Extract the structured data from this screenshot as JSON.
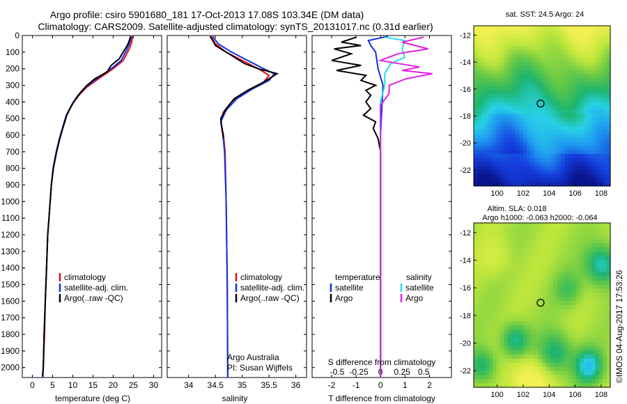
{
  "header": {
    "title_line1": "Argo profile: csiro 5901680_181 17-Oct-2013 17.08S 103.34E (DM data)",
    "title_line2": "Climatology: CARS2009. Satellite-adjusted climatology: synTS_20131017.nc (0.31d earlier)"
  },
  "colors": {
    "climatology": "#e01010",
    "satellite": "#1030e0",
    "argo": "#000000",
    "temp_sat": "#1030e0",
    "sal_sat": "#20e0e8",
    "sal_argo": "#e020e0"
  },
  "depth_axis": {
    "ticks": [
      0,
      100,
      200,
      300,
      400,
      500,
      600,
      700,
      800,
      900,
      1000,
      1100,
      1200,
      1300,
      1400,
      1500,
      1600,
      1700,
      1800,
      1900,
      2000
    ],
    "range": [
      0,
      2060
    ]
  },
  "chart_data": [
    {
      "type": "line",
      "panel": "temperature",
      "xlabel": "temperature (deg C)",
      "xlim": [
        -2.5,
        32
      ],
      "x_ticks": [
        0,
        5,
        10,
        15,
        20,
        25,
        30
      ],
      "legend": [
        "climatology",
        "satellite-adj. clim.",
        "Argo(..raw -QC)"
      ],
      "series": [
        {
          "name": "climatology",
          "points": [
            [
              24.8,
              5
            ],
            [
              24.6,
              40
            ],
            [
              24.0,
              80
            ],
            [
              22.5,
              150
            ],
            [
              20.0,
              200
            ],
            [
              17.0,
              250
            ],
            [
              13.5,
              310
            ],
            [
              11.5,
              360
            ],
            [
              10.0,
              410
            ],
            [
              8.5,
              480
            ],
            [
              7.5,
              560
            ],
            [
              6.8,
              620
            ],
            [
              6.0,
              700
            ],
            [
              5.2,
              800
            ],
            [
              4.7,
              900
            ],
            [
              4.4,
              1000
            ],
            [
              4.1,
              1100
            ],
            [
              3.8,
              1200
            ],
            [
              3.5,
              1400
            ],
            [
              3.2,
              1600
            ],
            [
              3.0,
              1800
            ],
            [
              2.7,
              2000
            ],
            [
              2.5,
              2060
            ]
          ]
        },
        {
          "name": "satellite-adj. clim.",
          "points": [
            [
              24.5,
              5
            ],
            [
              24.2,
              40
            ],
            [
              23.5,
              80
            ],
            [
              22.0,
              150
            ],
            [
              19.5,
              200
            ],
            [
              16.5,
              250
            ],
            [
              13.2,
              310
            ],
            [
              11.3,
              360
            ],
            [
              9.9,
              410
            ],
            [
              8.4,
              480
            ],
            [
              7.4,
              560
            ],
            [
              6.7,
              620
            ],
            [
              5.9,
              700
            ],
            [
              5.1,
              800
            ],
            [
              4.7,
              900
            ],
            [
              4.4,
              1000
            ],
            [
              4.1,
              1100
            ],
            [
              3.8,
              1200
            ],
            [
              3.5,
              1400
            ],
            [
              3.2,
              1600
            ],
            [
              2.9,
              1800
            ],
            [
              2.7,
              2000
            ],
            [
              2.6,
              2060
            ]
          ]
        },
        {
          "name": "Argo(..raw -QC)",
          "points": [
            [
              24.3,
              5
            ],
            [
              24.0,
              30
            ],
            [
              23.5,
              60
            ],
            [
              22.5,
              100
            ],
            [
              21.5,
              140
            ],
            [
              19.5,
              180
            ],
            [
              18.5,
              220
            ],
            [
              15.5,
              260
            ],
            [
              13.5,
              300
            ],
            [
              12.0,
              340
            ],
            [
              10.5,
              390
            ],
            [
              9.5,
              430
            ],
            [
              8.5,
              480
            ],
            [
              7.5,
              560
            ],
            [
              6.8,
              620
            ],
            [
              6.0,
              700
            ],
            [
              5.2,
              800
            ],
            [
              4.7,
              900
            ],
            [
              4.4,
              1000
            ],
            [
              4.1,
              1100
            ],
            [
              3.8,
              1200
            ],
            [
              3.5,
              1400
            ],
            [
              3.2,
              1600
            ],
            [
              2.9,
              1800
            ],
            [
              2.7,
              2000
            ],
            [
              2.5,
              2050
            ]
          ]
        }
      ]
    },
    {
      "type": "line",
      "panel": "salinity",
      "xlabel": "salinity",
      "xlim": [
        33.6,
        36.2
      ],
      "x_ticks": [
        34,
        34.5,
        35,
        35.5,
        36
      ],
      "legend": [
        "climatology",
        "satellite-adj. clim.",
        "Argo(..raw -QC)"
      ],
      "annotation": [
        "Argo Australia",
        "PI: Susan Wijffels"
      ],
      "series": [
        {
          "name": "climatology",
          "points": [
            [
              34.42,
              5
            ],
            [
              34.5,
              50
            ],
            [
              34.7,
              100
            ],
            [
              35.0,
              150
            ],
            [
              35.3,
              200
            ],
            [
              35.5,
              240
            ],
            [
              35.4,
              280
            ],
            [
              35.1,
              330
            ],
            [
              34.8,
              400
            ],
            [
              34.65,
              460
            ],
            [
              34.6,
              520
            ],
            [
              34.65,
              600
            ],
            [
              34.68,
              700
            ],
            [
              34.7,
              1000
            ],
            [
              34.72,
              1500
            ],
            [
              34.73,
              2060
            ]
          ]
        },
        {
          "name": "satellite-adj. clim.",
          "points": [
            [
              34.45,
              5
            ],
            [
              34.55,
              50
            ],
            [
              34.8,
              100
            ],
            [
              35.1,
              150
            ],
            [
              35.4,
              200
            ],
            [
              35.6,
              230
            ],
            [
              35.5,
              270
            ],
            [
              35.2,
              320
            ],
            [
              34.9,
              380
            ],
            [
              34.7,
              450
            ],
            [
              34.6,
              520
            ],
            [
              34.64,
              600
            ],
            [
              34.67,
              700
            ],
            [
              34.7,
              1000
            ],
            [
              34.72,
              1500
            ],
            [
              34.73,
              2060
            ]
          ]
        },
        {
          "name": "Argo(..raw -QC)",
          "points": [
            [
              34.4,
              5
            ],
            [
              34.45,
              30
            ],
            [
              34.5,
              60
            ],
            [
              34.6,
              80
            ],
            [
              34.75,
              110
            ],
            [
              34.9,
              140
            ],
            [
              35.05,
              170
            ],
            [
              35.3,
              200
            ],
            [
              35.65,
              230
            ],
            [
              35.5,
              260
            ],
            [
              35.35,
              290
            ],
            [
              35.1,
              330
            ],
            [
              34.85,
              380
            ],
            [
              34.7,
              440
            ],
            [
              34.6,
              500
            ],
            [
              34.62,
              560
            ],
            [
              34.65,
              620
            ]
          ]
        }
      ]
    },
    {
      "type": "line",
      "panel": "difference",
      "xlabel": "T difference from climatology",
      "xlabel_top": "S difference from climatology",
      "xlim": [
        -2.8,
        2.9
      ],
      "x_ticks_bottom": [
        -2,
        -1,
        0,
        1,
        2
      ],
      "x_ticks_top": [
        "-0.5",
        "-0.25",
        "0",
        "0.25",
        "0.5"
      ],
      "legend_temperature": [
        "temperature",
        "satellite",
        "Argo"
      ],
      "legend_salinity": [
        "salinity",
        "satellite",
        "Argo"
      ],
      "series": [
        {
          "name": "temperature satellite",
          "points": [
            [
              0.3,
              5
            ],
            [
              -0.5,
              30
            ],
            [
              -0.4,
              60
            ],
            [
              -0.2,
              100
            ],
            [
              -0.1,
              200
            ],
            [
              0.1,
              300
            ],
            [
              0.05,
              450
            ],
            [
              0.0,
              600
            ],
            [
              0.0,
              2060
            ]
          ]
        },
        {
          "name": "temperature Argo",
          "points": [
            [
              -1.0,
              10
            ],
            [
              -1.6,
              40
            ],
            [
              -0.8,
              60
            ],
            [
              -1.9,
              80
            ],
            [
              -1.2,
              110
            ],
            [
              -2.0,
              150
            ],
            [
              -0.8,
              180
            ],
            [
              -1.8,
              210
            ],
            [
              -0.6,
              240
            ],
            [
              -0.8,
              270
            ],
            [
              -0.2,
              300
            ],
            [
              -0.6,
              330
            ],
            [
              -0.4,
              360
            ],
            [
              -0.6,
              400
            ],
            [
              -0.4,
              440
            ],
            [
              -0.7,
              480
            ],
            [
              -0.2,
              520
            ],
            [
              -0.3,
              560
            ],
            [
              -0.1,
              620
            ],
            [
              0.0,
              700
            ],
            [
              0.0,
              2060
            ]
          ]
        },
        {
          "name": "salinity satellite",
          "points": [
            [
              0.05,
              10
            ],
            [
              0.28,
              30
            ],
            [
              0.25,
              80
            ],
            [
              0.28,
              130
            ],
            [
              0.12,
              170
            ],
            [
              0.05,
              230
            ],
            [
              0.05,
              300
            ],
            [
              0.0,
              400
            ],
            [
              0.0,
              600
            ],
            [
              0.0,
              2060
            ]
          ]
        },
        {
          "name": "salinity Argo",
          "points": [
            [
              0.5,
              10
            ],
            [
              0.25,
              40
            ],
            [
              0.55,
              80
            ],
            [
              0.2,
              110
            ],
            [
              0.0,
              150
            ],
            [
              0.45,
              190
            ],
            [
              0.25,
              210
            ],
            [
              0.6,
              230
            ],
            [
              0.3,
              260
            ],
            [
              0.1,
              300
            ],
            [
              0.1,
              350
            ],
            [
              0.0,
              420
            ],
            [
              0.0,
              600
            ],
            [
              0.0,
              2060
            ]
          ]
        }
      ]
    },
    {
      "type": "heatmap",
      "panel": "sst-map",
      "title": "sat. SST: 24.5 Argo: 24",
      "x_ticks": [
        100,
        102,
        104,
        106,
        108
      ],
      "y_ticks": [
        -12,
        -14,
        -16,
        -18,
        -20,
        -22
      ],
      "xlim": [
        98.2,
        108.7
      ],
      "ylim": [
        -23.2,
        -11.3
      ],
      "marker": [
        103.34,
        -17.08
      ]
    },
    {
      "type": "heatmap",
      "panel": "sla-map",
      "title_line1": "Altim. SLA: 0.018",
      "title_line2": "Argo h1000: -0.063 h2000: -0.064",
      "x_ticks": [
        100,
        102,
        104,
        106,
        108
      ],
      "y_ticks": [
        -12,
        -14,
        -16,
        -18,
        -20,
        -22
      ],
      "xlim": [
        98.2,
        108.7
      ],
      "ylim": [
        -23.2,
        -11.3
      ],
      "marker": [
        103.34,
        -17.08
      ]
    }
  ],
  "credit": "©IMOS 04-Aug-2017 17:53:26"
}
